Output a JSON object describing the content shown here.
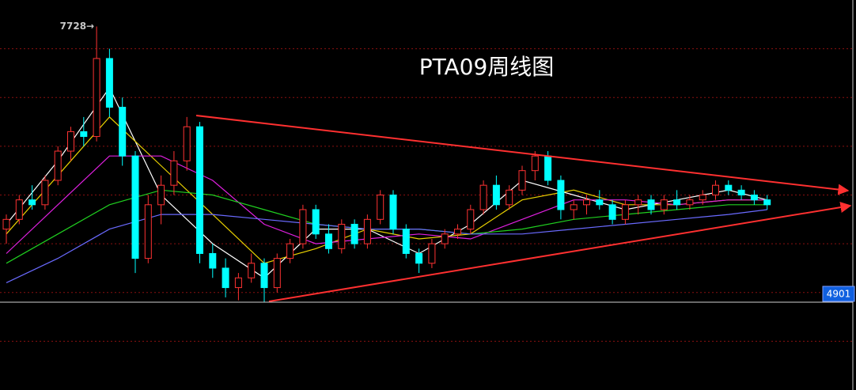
{
  "chart_data": {
    "type": "candlestick",
    "title": "PTA09周线图",
    "high_label": "7728→",
    "low_label": "4901",
    "low_value": 4901,
    "ylim": [
      4000,
      8000
    ],
    "gridlines": [
      4500,
      5000,
      5500,
      6000,
      6500,
      7000,
      7500
    ],
    "grid": true,
    "up_color": "#ff3232",
    "down_color": "#00ffff",
    "open": [
      5650,
      5750,
      5950,
      5900,
      6150,
      6450,
      6650,
      6600,
      7400,
      6900,
      6400,
      5350,
      5900,
      6100,
      6350,
      6700,
      5400,
      5250,
      5050,
      5150,
      5300,
      5050,
      5350,
      5500,
      5850,
      5600,
      5450,
      5700,
      5500,
      5750,
      6000,
      5650,
      5400,
      5300,
      5500,
      5600,
      5650,
      5850,
      6100,
      5900,
      6050,
      6250,
      6400,
      6150,
      5850,
      5900,
      5950,
      5900,
      5750,
      5900,
      5950,
      5850,
      5950,
      5900,
      5950,
      6000,
      6100,
      6050,
      6000,
      5950
    ],
    "high": [
      5800,
      6000,
      6100,
      6200,
      6500,
      6700,
      6800,
      7728,
      7500,
      7000,
      6450,
      6000,
      6200,
      6450,
      6800,
      6750,
      5500,
      5350,
      5200,
      5400,
      5350,
      5400,
      5550,
      5900,
      5900,
      5700,
      5750,
      5750,
      5800,
      6050,
      6050,
      5700,
      5450,
      5550,
      5650,
      5700,
      5900,
      6150,
      6200,
      6100,
      6300,
      6450,
      6450,
      6200,
      5950,
      6000,
      6050,
      5950,
      5950,
      6000,
      6000,
      6000,
      6050,
      6000,
      6050,
      6150,
      6150,
      6100,
      6050,
      6000
    ],
    "low": [
      5500,
      5700,
      5850,
      5850,
      6100,
      6350,
      6500,
      6550,
      6800,
      6300,
      5200,
      5300,
      5700,
      6000,
      6250,
      5300,
      5150,
      4950,
      4920,
      5100,
      4901,
      5000,
      5300,
      5450,
      5550,
      5400,
      5400,
      5450,
      5450,
      5700,
      5600,
      5350,
      5200,
      5250,
      5450,
      5550,
      5600,
      5800,
      5850,
      5850,
      6000,
      6150,
      6100,
      5750,
      5750,
      5800,
      5850,
      5700,
      5700,
      5800,
      5800,
      5800,
      5850,
      5850,
      5900,
      5950,
      6000,
      5950,
      5900,
      5850
    ],
    "close": [
      5750,
      5950,
      5900,
      6150,
      6450,
      6650,
      6600,
      7400,
      6900,
      6400,
      5350,
      5900,
      6100,
      6350,
      6700,
      5400,
      5250,
      5050,
      5150,
      5300,
      5050,
      5350,
      5500,
      5850,
      5600,
      5450,
      5700,
      5500,
      5750,
      6000,
      5650,
      5400,
      5300,
      5500,
      5600,
      5650,
      5850,
      6100,
      5900,
      6050,
      6250,
      6400,
      6150,
      5850,
      5900,
      5950,
      5900,
      5750,
      5900,
      5950,
      5850,
      5950,
      5900,
      5950,
      6000,
      6100,
      6050,
      6000,
      5950,
      5900
    ],
    "ma_x": [
      0,
      4,
      8,
      12,
      16,
      20,
      24,
      28,
      32,
      36,
      40,
      44,
      48,
      52,
      56,
      59
    ],
    "series": [
      {
        "color": "#ffffff",
        "values": [
          5700,
          6350,
          7100,
          6000,
          5500,
          5150,
          5650,
          5650,
          5400,
          5700,
          6150,
          6000,
          5850,
          5950,
          6050,
          5950
        ]
      },
      {
        "color": "#e8d000",
        "values": [
          5600,
          6200,
          6800,
          6300,
          5800,
          5300,
          5450,
          5650,
          5550,
          5600,
          5950,
          6050,
          5900,
          5900,
          5950,
          5950
        ]
      },
      {
        "color": "#e020e0",
        "values": [
          5400,
          5900,
          6400,
          6400,
          6150,
          5700,
          5500,
          5550,
          5600,
          5550,
          5750,
          5950,
          5950,
          5900,
          5950,
          5950
        ]
      },
      {
        "color": "#20d020",
        "values": [
          5300,
          5600,
          5900,
          6050,
          6000,
          5850,
          5700,
          5650,
          5650,
          5600,
          5650,
          5750,
          5800,
          5850,
          5900,
          5900
        ]
      },
      {
        "color": "#6a6aff",
        "values": [
          5100,
          5350,
          5650,
          5800,
          5800,
          5750,
          5700,
          5650,
          5650,
          5600,
          5600,
          5650,
          5700,
          5750,
          5800,
          5850
        ]
      }
    ]
  }
}
